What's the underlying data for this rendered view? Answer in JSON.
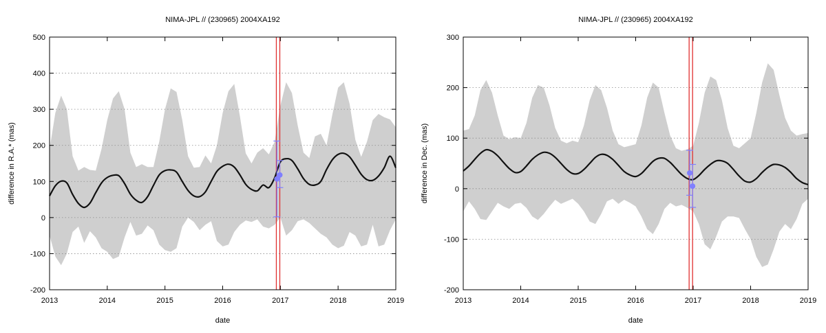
{
  "chart_data": [
    {
      "type": "line",
      "title": "NIMA-JPL // (230965) 2004XA192",
      "xlabel": "date",
      "ylabel": "difference in R.A.* (mas)",
      "xlim": [
        2013,
        2019
      ],
      "ylim": [
        -200,
        500
      ],
      "xticks": [
        2013,
        2014,
        2015,
        2016,
        2017,
        2018,
        2019
      ],
      "yticks": [
        -200,
        -100,
        0,
        100,
        200,
        300,
        400,
        500
      ],
      "grid": "horizontal dotted",
      "colors": {
        "band": "#cfcfcf",
        "line": "#111111",
        "obs": "#7f7fff",
        "marker": "#e03030"
      },
      "vertical_markers": [
        2016.93,
        2016.99
      ],
      "observations": [
        {
          "x": 2016.94,
          "y": 107,
          "ylow": 2,
          "yhigh": 212
        },
        {
          "x": 2016.99,
          "y": 118,
          "ylow": 83,
          "yhigh": 158
        }
      ],
      "series": [
        {
          "role": "mean",
          "x": [
            2013.0,
            2013.1,
            2013.2,
            2013.3,
            2013.4,
            2013.5,
            2013.6,
            2013.7,
            2013.8,
            2013.9,
            2014.0,
            2014.1,
            2014.2,
            2014.3,
            2014.4,
            2014.5,
            2014.6,
            2014.7,
            2014.8,
            2014.9,
            2015.0,
            2015.1,
            2015.2,
            2015.3,
            2015.4,
            2015.5,
            2015.6,
            2015.7,
            2015.8,
            2015.9,
            2016.0,
            2016.1,
            2016.2,
            2016.3,
            2016.4,
            2016.5,
            2016.6,
            2016.7,
            2016.8,
            2016.9,
            2017.0,
            2017.1,
            2017.2,
            2017.3,
            2017.4,
            2017.5,
            2017.6,
            2017.7,
            2017.8,
            2017.9,
            2018.0,
            2018.1,
            2018.2,
            2018.3,
            2018.4,
            2018.5,
            2018.6,
            2018.7,
            2018.8,
            2018.9,
            2019.0
          ],
          "y": [
            60,
            88,
            101,
            96,
            64,
            39,
            28,
            40,
            69,
            96,
            111,
            117,
            116,
            94,
            65,
            48,
            42,
            58,
            89,
            118,
            130,
            132,
            126,
            100,
            75,
            60,
            58,
            71,
            100,
            128,
            142,
            148,
            140,
            118,
            92,
            78,
            74,
            90,
            83,
            110,
            154,
            163,
            158,
            135,
            108,
            92,
            90,
            100,
            133,
            160,
            175,
            178,
            168,
            145,
            120,
            105,
            103,
            115,
            138,
            170,
            138
          ]
        },
        {
          "role": "upper",
          "x": [
            2013.0,
            2013.1,
            2013.2,
            2013.3,
            2013.4,
            2013.5,
            2013.6,
            2013.7,
            2013.8,
            2013.9,
            2014.0,
            2014.1,
            2014.2,
            2014.3,
            2014.4,
            2014.5,
            2014.6,
            2014.7,
            2014.8,
            2014.9,
            2015.0,
            2015.1,
            2015.2,
            2015.3,
            2015.4,
            2015.5,
            2015.6,
            2015.7,
            2015.8,
            2015.9,
            2016.0,
            2016.1,
            2016.2,
            2016.3,
            2016.4,
            2016.5,
            2016.6,
            2016.7,
            2016.8,
            2016.9,
            2017.0,
            2017.1,
            2017.2,
            2017.3,
            2017.4,
            2017.5,
            2017.6,
            2017.7,
            2017.8,
            2017.9,
            2018.0,
            2018.1,
            2018.2,
            2018.3,
            2018.4,
            2018.5,
            2018.6,
            2018.7,
            2018.8,
            2018.9,
            2019.0
          ],
          "y": [
            190,
            290,
            338,
            300,
            170,
            130,
            140,
            132,
            130,
            190,
            270,
            330,
            350,
            300,
            180,
            140,
            148,
            140,
            140,
            210,
            300,
            358,
            348,
            270,
            170,
            138,
            140,
            172,
            150,
            200,
            290,
            350,
            370,
            280,
            178,
            150,
            180,
            192,
            175,
            210,
            310,
            375,
            345,
            255,
            180,
            165,
            225,
            232,
            200,
            285,
            360,
            375,
            315,
            215,
            168,
            210,
            270,
            287,
            278,
            272,
            250
          ]
        },
        {
          "role": "lower",
          "x": [
            2013.0,
            2013.1,
            2013.2,
            2013.3,
            2013.4,
            2013.5,
            2013.6,
            2013.7,
            2013.8,
            2013.9,
            2014.0,
            2014.1,
            2014.2,
            2014.3,
            2014.4,
            2014.5,
            2014.6,
            2014.7,
            2014.8,
            2014.9,
            2015.0,
            2015.1,
            2015.2,
            2015.3,
            2015.4,
            2015.5,
            2015.6,
            2015.7,
            2015.8,
            2015.9,
            2016.0,
            2016.1,
            2016.2,
            2016.3,
            2016.4,
            2016.5,
            2016.6,
            2016.7,
            2016.8,
            2016.9,
            2017.0,
            2017.1,
            2017.2,
            2017.3,
            2017.4,
            2017.5,
            2017.6,
            2017.7,
            2017.8,
            2017.9,
            2018.0,
            2018.1,
            2018.2,
            2018.3,
            2018.4,
            2018.5,
            2018.6,
            2018.7,
            2018.8,
            2018.9,
            2019.0
          ],
          "y": [
            -50,
            -108,
            -132,
            -100,
            -40,
            -25,
            -70,
            -38,
            -55,
            -85,
            -95,
            -115,
            -108,
            -55,
            -12,
            -50,
            -45,
            -22,
            -35,
            -75,
            -90,
            -95,
            -85,
            -25,
            0,
            -12,
            -35,
            -20,
            -10,
            -65,
            -80,
            -75,
            -40,
            -20,
            -8,
            -12,
            -5,
            -25,
            -30,
            -20,
            0,
            -50,
            -35,
            -10,
            -5,
            -15,
            -30,
            -45,
            -55,
            -75,
            -85,
            -78,
            -40,
            -50,
            -80,
            -75,
            -20,
            -80,
            -75,
            -35,
            -5
          ]
        }
      ]
    },
    {
      "type": "line",
      "title": "NIMA-JPL // (230965) 2004XA192",
      "xlabel": "date",
      "ylabel": "difference in Dec. (mas)",
      "xlim": [
        2013,
        2019
      ],
      "ylim": [
        -200,
        300
      ],
      "xticks": [
        2013,
        2014,
        2015,
        2016,
        2017,
        2018,
        2019
      ],
      "yticks": [
        -200,
        -100,
        0,
        100,
        200,
        300
      ],
      "grid": "horizontal dotted",
      "colors": {
        "band": "#cfcfcf",
        "line": "#111111",
        "obs": "#7f7fff",
        "marker": "#e03030"
      },
      "vertical_markers": [
        2016.93,
        2016.99
      ],
      "observations": [
        {
          "x": 2016.94,
          "y": 31,
          "ylow": -13,
          "yhigh": 76
        },
        {
          "x": 2016.99,
          "y": 5,
          "ylow": -37,
          "yhigh": 48
        }
      ],
      "series": [
        {
          "role": "mean",
          "x": [
            2013.0,
            2013.1,
            2013.2,
            2013.3,
            2013.4,
            2013.5,
            2013.6,
            2013.7,
            2013.8,
            2013.9,
            2014.0,
            2014.1,
            2014.2,
            2014.3,
            2014.4,
            2014.5,
            2014.6,
            2014.7,
            2014.8,
            2014.9,
            2015.0,
            2015.1,
            2015.2,
            2015.3,
            2015.4,
            2015.5,
            2015.6,
            2015.7,
            2015.8,
            2015.9,
            2016.0,
            2016.1,
            2016.2,
            2016.3,
            2016.4,
            2016.5,
            2016.6,
            2016.7,
            2016.8,
            2016.9,
            2017.0,
            2017.1,
            2017.2,
            2017.3,
            2017.4,
            2017.5,
            2017.6,
            2017.7,
            2017.8,
            2017.9,
            2018.0,
            2018.1,
            2018.2,
            2018.3,
            2018.4,
            2018.5,
            2018.6,
            2018.7,
            2018.8,
            2018.9,
            2019.0
          ],
          "y": [
            35,
            45,
            58,
            70,
            77,
            74,
            65,
            52,
            40,
            32,
            34,
            45,
            58,
            67,
            72,
            70,
            62,
            50,
            38,
            30,
            30,
            38,
            50,
            62,
            68,
            66,
            58,
            46,
            34,
            27,
            24,
            30,
            42,
            54,
            60,
            60,
            52,
            40,
            28,
            20,
            18,
            26,
            38,
            48,
            55,
            55,
            50,
            38,
            25,
            15,
            13,
            20,
            32,
            42,
            48,
            47,
            42,
            32,
            20,
            12,
            8
          ]
        },
        {
          "role": "upper",
          "x": [
            2013.0,
            2013.1,
            2013.2,
            2013.3,
            2013.4,
            2013.5,
            2013.6,
            2013.7,
            2013.8,
            2013.9,
            2014.0,
            2014.1,
            2014.2,
            2014.3,
            2014.4,
            2014.5,
            2014.6,
            2014.7,
            2014.8,
            2014.9,
            2015.0,
            2015.1,
            2015.2,
            2015.3,
            2015.4,
            2015.5,
            2015.6,
            2015.7,
            2015.8,
            2015.9,
            2016.0,
            2016.1,
            2016.2,
            2016.3,
            2016.4,
            2016.5,
            2016.6,
            2016.7,
            2016.8,
            2016.9,
            2017.0,
            2017.1,
            2017.2,
            2017.3,
            2017.4,
            2017.5,
            2017.6,
            2017.7,
            2017.8,
            2017.9,
            2018.0,
            2018.1,
            2018.2,
            2018.3,
            2018.4,
            2018.5,
            2018.6,
            2018.7,
            2018.8,
            2018.9,
            2019.0
          ],
          "y": [
            115,
            118,
            145,
            195,
            215,
            190,
            145,
            105,
            98,
            102,
            100,
            130,
            180,
            205,
            200,
            165,
            120,
            95,
            90,
            95,
            92,
            125,
            175,
            205,
            195,
            160,
            115,
            88,
            82,
            85,
            88,
            125,
            180,
            210,
            200,
            150,
            105,
            80,
            75,
            78,
            85,
            130,
            190,
            222,
            215,
            175,
            120,
            85,
            80,
            90,
            100,
            150,
            210,
            248,
            235,
            185,
            140,
            115,
            105,
            108,
            110
          ]
        },
        {
          "role": "lower",
          "x": [
            2013.0,
            2013.1,
            2013.2,
            2013.3,
            2013.4,
            2013.5,
            2013.6,
            2013.7,
            2013.8,
            2013.9,
            2014.0,
            2014.1,
            2014.2,
            2014.3,
            2014.4,
            2014.5,
            2014.6,
            2014.7,
            2014.8,
            2014.9,
            2015.0,
            2015.1,
            2015.2,
            2015.3,
            2015.4,
            2015.5,
            2015.6,
            2015.7,
            2015.8,
            2015.9,
            2016.0,
            2016.1,
            2016.2,
            2016.3,
            2016.4,
            2016.5,
            2016.6,
            2016.7,
            2016.8,
            2016.9,
            2017.0,
            2017.1,
            2017.2,
            2017.3,
            2017.4,
            2017.5,
            2017.6,
            2017.7,
            2017.8,
            2017.9,
            2018.0,
            2018.1,
            2018.2,
            2018.3,
            2018.4,
            2018.5,
            2018.6,
            2018.7,
            2018.8,
            2018.9,
            2019.0
          ],
          "y": [
            -45,
            -25,
            -40,
            -60,
            -62,
            -45,
            -28,
            -35,
            -40,
            -30,
            -28,
            -38,
            -55,
            -62,
            -50,
            -35,
            -22,
            -30,
            -25,
            -20,
            -30,
            -45,
            -65,
            -70,
            -50,
            -25,
            -20,
            -30,
            -22,
            -28,
            -35,
            -55,
            -80,
            -90,
            -70,
            -40,
            -28,
            -35,
            -32,
            -38,
            -45,
            -70,
            -110,
            -120,
            -95,
            -65,
            -55,
            -55,
            -58,
            -80,
            -100,
            -135,
            -155,
            -150,
            -120,
            -85,
            -70,
            -80,
            -60,
            -30,
            -20
          ]
        }
      ]
    }
  ]
}
